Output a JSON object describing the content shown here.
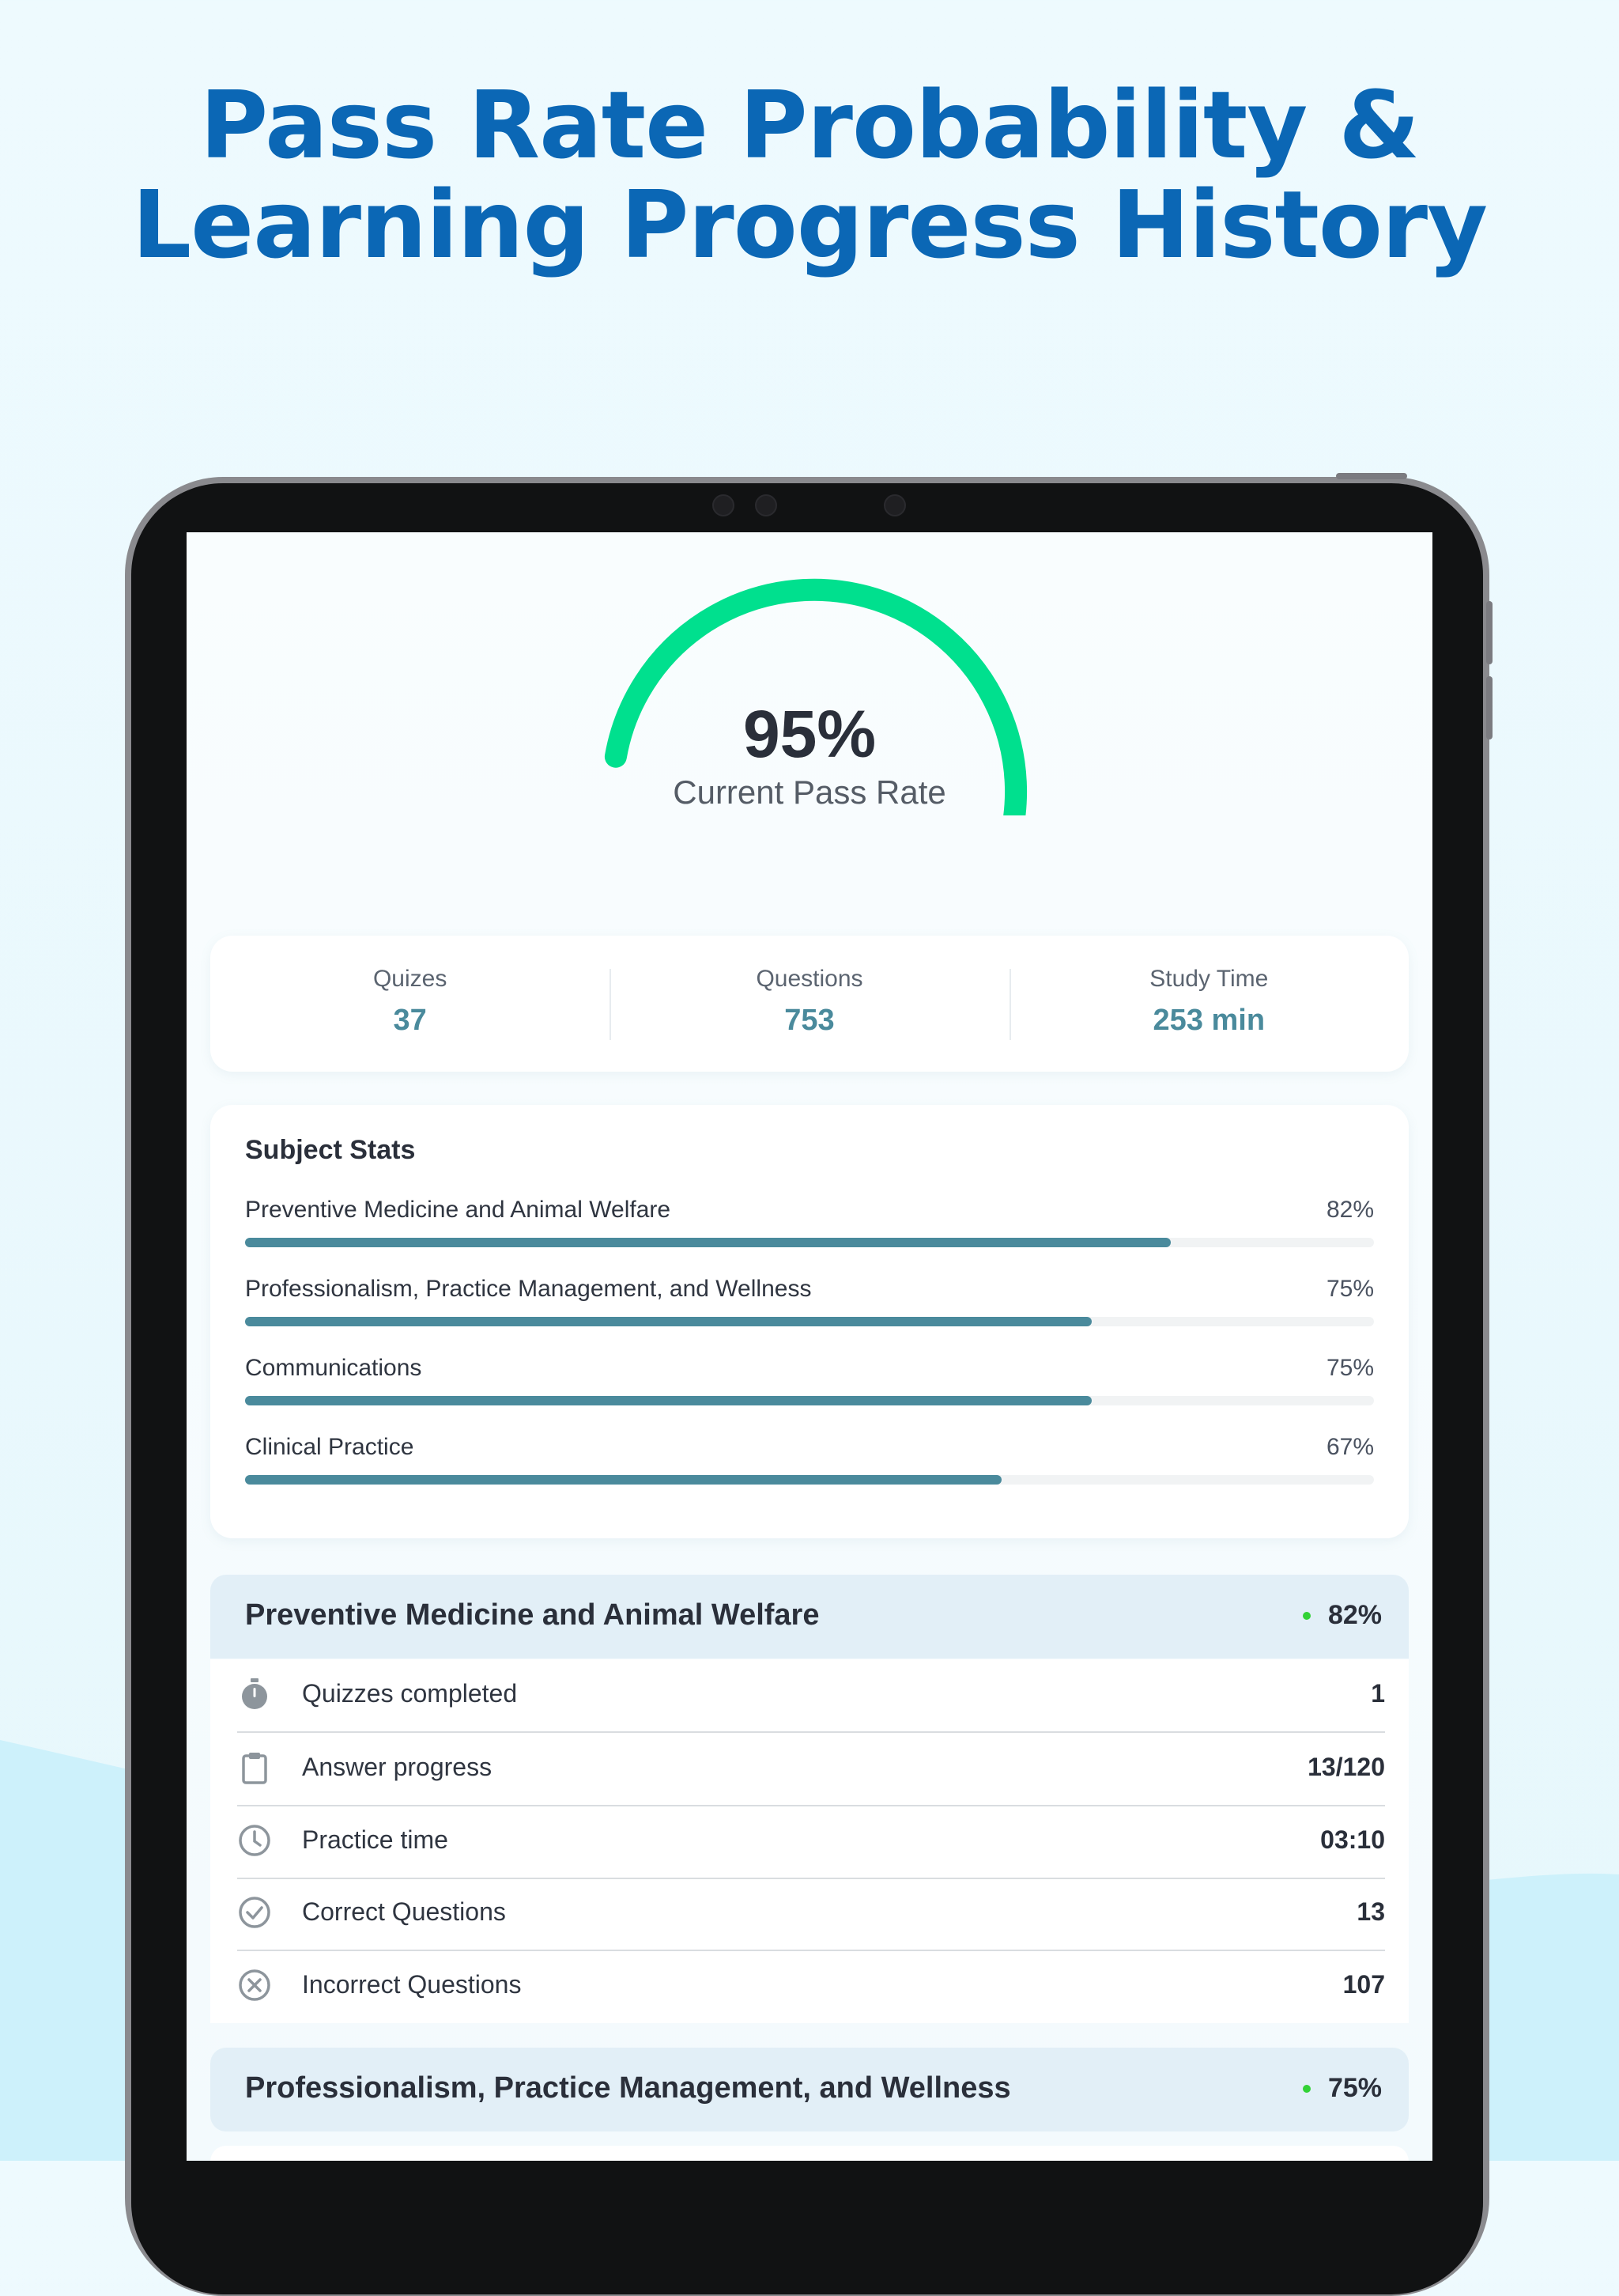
{
  "headline": {
    "line1": "Pass Rate Probability &",
    "line2": "Learning Progress History"
  },
  "colors": {
    "headline": "#0b67b5",
    "gauge": "#00e08e",
    "accent": "#4a8a9c",
    "status_dot": "#32d236"
  },
  "gauge": {
    "value_text": "95%",
    "value": 95,
    "label": "Current Pass Rate"
  },
  "summary": [
    {
      "label": "Quizes",
      "value": "37"
    },
    {
      "label": "Questions",
      "value": "753"
    },
    {
      "label": "Study Time",
      "value": "253 min"
    }
  ],
  "subject_stats": {
    "title": "Subject Stats",
    "items": [
      {
        "name": "Preventive Medicine and Animal Welfare",
        "percent_text": "82%",
        "percent": 82
      },
      {
        "name": "Professionalism, Practice Management, and Wellness",
        "percent_text": "75%",
        "percent": 75
      },
      {
        "name": "Communications",
        "percent_text": "75%",
        "percent": 75
      },
      {
        "name": "Clinical Practice",
        "percent_text": "67%",
        "percent": 67
      }
    ]
  },
  "subjects": [
    {
      "title": "Preventive Medicine and Animal Welfare",
      "percent_text": "82%",
      "rows": [
        {
          "icon": "stopwatch-icon",
          "label": "Quizzes completed",
          "value": "1"
        },
        {
          "icon": "clipboard-icon",
          "label": "Answer progress",
          "value": "13/120"
        },
        {
          "icon": "clock-icon",
          "label": "Practice time",
          "value": "03:10"
        },
        {
          "icon": "check-circle-icon",
          "label": "Correct Questions",
          "value": "13"
        },
        {
          "icon": "x-circle-icon",
          "label": "Incorrect Questions",
          "value": "107"
        }
      ]
    },
    {
      "title": "Professionalism, Practice Management, and Wellness",
      "percent_text": "75%"
    }
  ]
}
